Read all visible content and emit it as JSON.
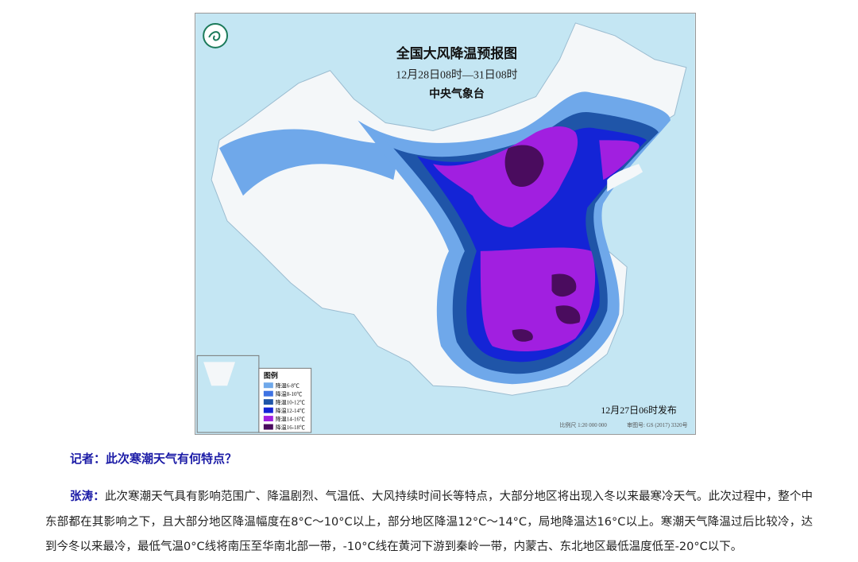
{
  "map": {
    "title": "全国大风降温预报图",
    "period": "12月28日08时—31日08时",
    "issuer": "中央气象台",
    "legend": {
      "title": "图例",
      "items": [
        {
          "label": "降温6-8℃",
          "color": "#6fa8ea"
        },
        {
          "label": "降温8-10℃",
          "color": "#3d72e3"
        },
        {
          "label": "降温10-12℃",
          "color": "#1f55a8"
        },
        {
          "label": "降温12-14℃",
          "color": "#1424d6"
        },
        {
          "label": "降温14-16℃",
          "color": "#a11fe0"
        },
        {
          "label": "降温16-18℃",
          "color": "#4a0c5e"
        }
      ]
    },
    "issued": "12月27日06时发布",
    "scale": "比例尺 1:20 000 000",
    "approval": "审图号: GS (2017) 3320号"
  },
  "article": {
    "question": "记者：此次寒潮天气有何特点？",
    "answer_speaker": "张涛：",
    "answer_text": "此次寒潮天气具有影响范围广、降温剧烈、气温低、大风持续时间长等特点，大部分地区将出现入冬以来最寒冷天气。此次过程中，整个中东部都在其影响之下，且大部分地区降温幅度在8°C～10°C以上，部分地区降温12°C～14°C，局地降温达16°C以上。寒潮天气降温过后比较冷，达到今冬以来最冷，最低气温0°C线将南压至华南北部一带，-10°C线在黄河下游到秦岭一带，内蒙古、东北地区最低温度低至-20°C以下。"
  }
}
